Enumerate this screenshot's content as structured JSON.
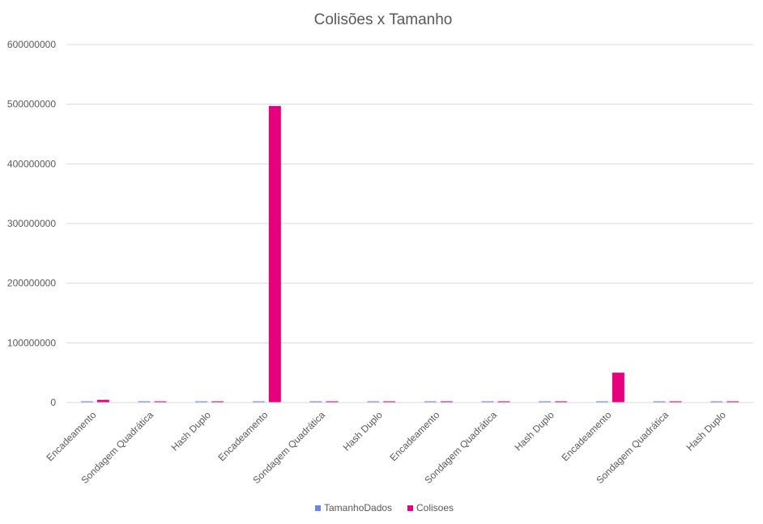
{
  "chart_data": {
    "type": "bar",
    "title": "Colisões x Tamanho",
    "xlabel": "",
    "ylabel": "",
    "ylim": [
      0,
      600000000
    ],
    "yticks": [
      0,
      100000000,
      200000000,
      300000000,
      400000000,
      500000000,
      600000000
    ],
    "ytick_labels": [
      "0",
      "100000000",
      "200000000",
      "300000000",
      "400000000",
      "500000000",
      "600000000"
    ],
    "grid": true,
    "legend_position": "bottom",
    "categories": [
      "Encadeamento",
      "Sondagem Quadrática",
      "Hash Duplo",
      "Encadeamento",
      "Sondagem Quadrática",
      "Hash Duplo",
      "Encadeamento",
      "Sondagem Quadrática",
      "Hash Duplo",
      "Encadeamento",
      "Sondagem Quadrática",
      "Hash Duplo"
    ],
    "series": [
      {
        "name": "TamanhoDados",
        "color": "#6b85f0",
        "values": [
          1000000,
          1000000,
          1000000,
          1000000,
          1000000,
          1000000,
          1000000,
          1000000,
          1000000,
          1000000,
          1000000,
          1000000
        ]
      },
      {
        "name": "Colisoes",
        "color": "#e6007e",
        "values": [
          4500000,
          500000,
          500000,
          497000000,
          500000,
          500000,
          500000,
          500000,
          500000,
          50000000,
          500000,
          500000
        ]
      }
    ]
  }
}
